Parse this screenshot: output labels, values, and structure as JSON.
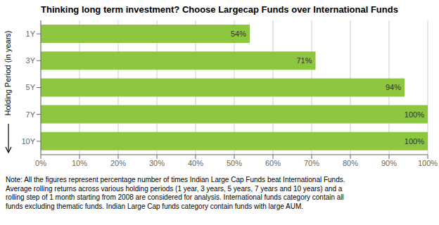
{
  "chart_data": {
    "type": "bar",
    "orientation": "horizontal",
    "title": "Thinking long term investment? Choose Largecap Funds over International Funds",
    "y_label": "Holding Period (in years)",
    "categories": [
      "1Y",
      "3Y",
      "5Y",
      "7Y",
      "10Y"
    ],
    "values": [
      54,
      71,
      94,
      100,
      100
    ],
    "value_labels": [
      "54%",
      "71%",
      "94%",
      "100%",
      "100%"
    ],
    "data_labels": true,
    "color": "#8DC63F",
    "xlim": [
      0,
      100
    ],
    "xticks": [
      {
        "value": 0,
        "label": "0%"
      },
      {
        "value": 10,
        "label": "10%"
      },
      {
        "value": 20,
        "label": "20%"
      },
      {
        "value": 30,
        "label": "30%"
      },
      {
        "value": 40,
        "label": "40%"
      },
      {
        "value": 50,
        "label": "50%"
      },
      {
        "value": 60,
        "label": "60%"
      },
      {
        "value": 70,
        "label": "70%"
      },
      {
        "value": 80,
        "label": "80%"
      },
      {
        "value": 90,
        "label": "90%"
      },
      {
        "value": 100,
        "label": "100%"
      }
    ],
    "grid": true,
    "annotations": [
      "Note: All the figures represent percentage number of times Indian Large Cap Funds beat International Funds.",
      "Average rolling returns across various holding periods (1 year, 3 years, 5 years, 7 years and 10 years) and a",
      "rolling step of 1 month starting from 2008 are considered for analysis. International funds category contain all",
      "funds excluding thematic funds. Indian Large Cap funds category contain funds with large AUM."
    ]
  }
}
